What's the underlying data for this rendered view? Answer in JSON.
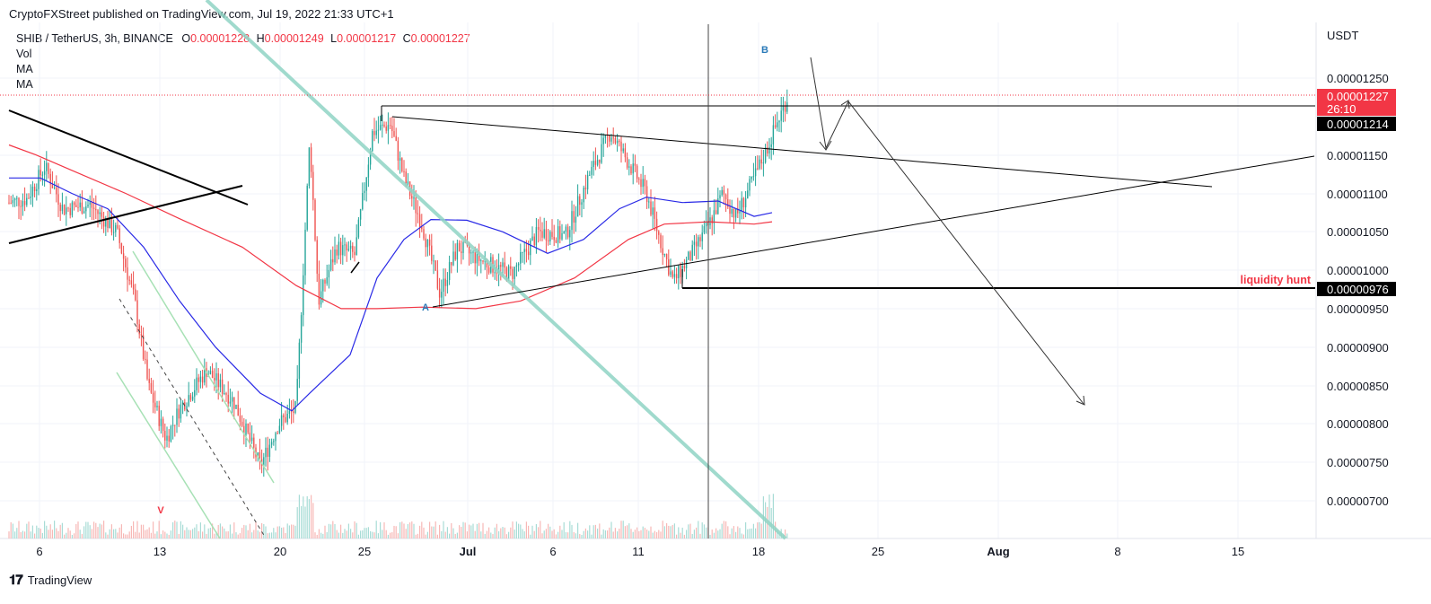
{
  "publish": {
    "text": "CryptoFXStreet published on TradingView.com, Jul 19, 2022 21:33 UTC+1"
  },
  "legend": {
    "symbol": "SHIB / TetherUS, 3h, BINANCE",
    "o_label": "O",
    "o_value": "0.00001228",
    "h_label": "H",
    "h_value": "0.00001249",
    "l_label": "L",
    "l_value": "0.00001217",
    "c_label": "C",
    "c_value": "0.00001227",
    "indicators": [
      "Vol",
      "MA",
      "MA"
    ]
  },
  "footer": {
    "brand": "TradingView",
    "logo": "tv-logo-icon"
  },
  "chart_data": {
    "type": "candlestick",
    "currency": "USDT",
    "y_ticks": [
      "0.00001250",
      "0.00001150",
      "0.00001100",
      "0.00001050",
      "0.00001000",
      "0.00000950",
      "0.00000900",
      "0.00000850",
      "0.00000800",
      "0.00000750",
      "0.00000700"
    ],
    "x_ticks": [
      "6",
      "13",
      "20",
      "25",
      "Jul",
      "6",
      "11",
      "18",
      "25",
      "Aug",
      "8",
      "15"
    ],
    "price_labels": {
      "last": {
        "value": "0.00001227",
        "countdown": "26:10",
        "color": "#f23645"
      },
      "line1": {
        "value": "0.00001214",
        "color": "#000000"
      },
      "line2": {
        "value": "0.00000976",
        "color": "#000000"
      }
    },
    "annotations": [
      {
        "text": "B",
        "color": "#2a7ab8"
      },
      {
        "text": "A",
        "color": "#2a7ab8"
      },
      {
        "text": "V",
        "color": "#f23645"
      },
      {
        "text": "liquidity hunt",
        "color": "#f23645"
      }
    ],
    "ma_fast_color": "#2929e6",
    "ma_slow_color": "#f23645",
    "up_color": "#26a69a",
    "down_color": "#ef5350",
    "ylim": [
      6.5e-06,
      1.28e-05
    ]
  }
}
